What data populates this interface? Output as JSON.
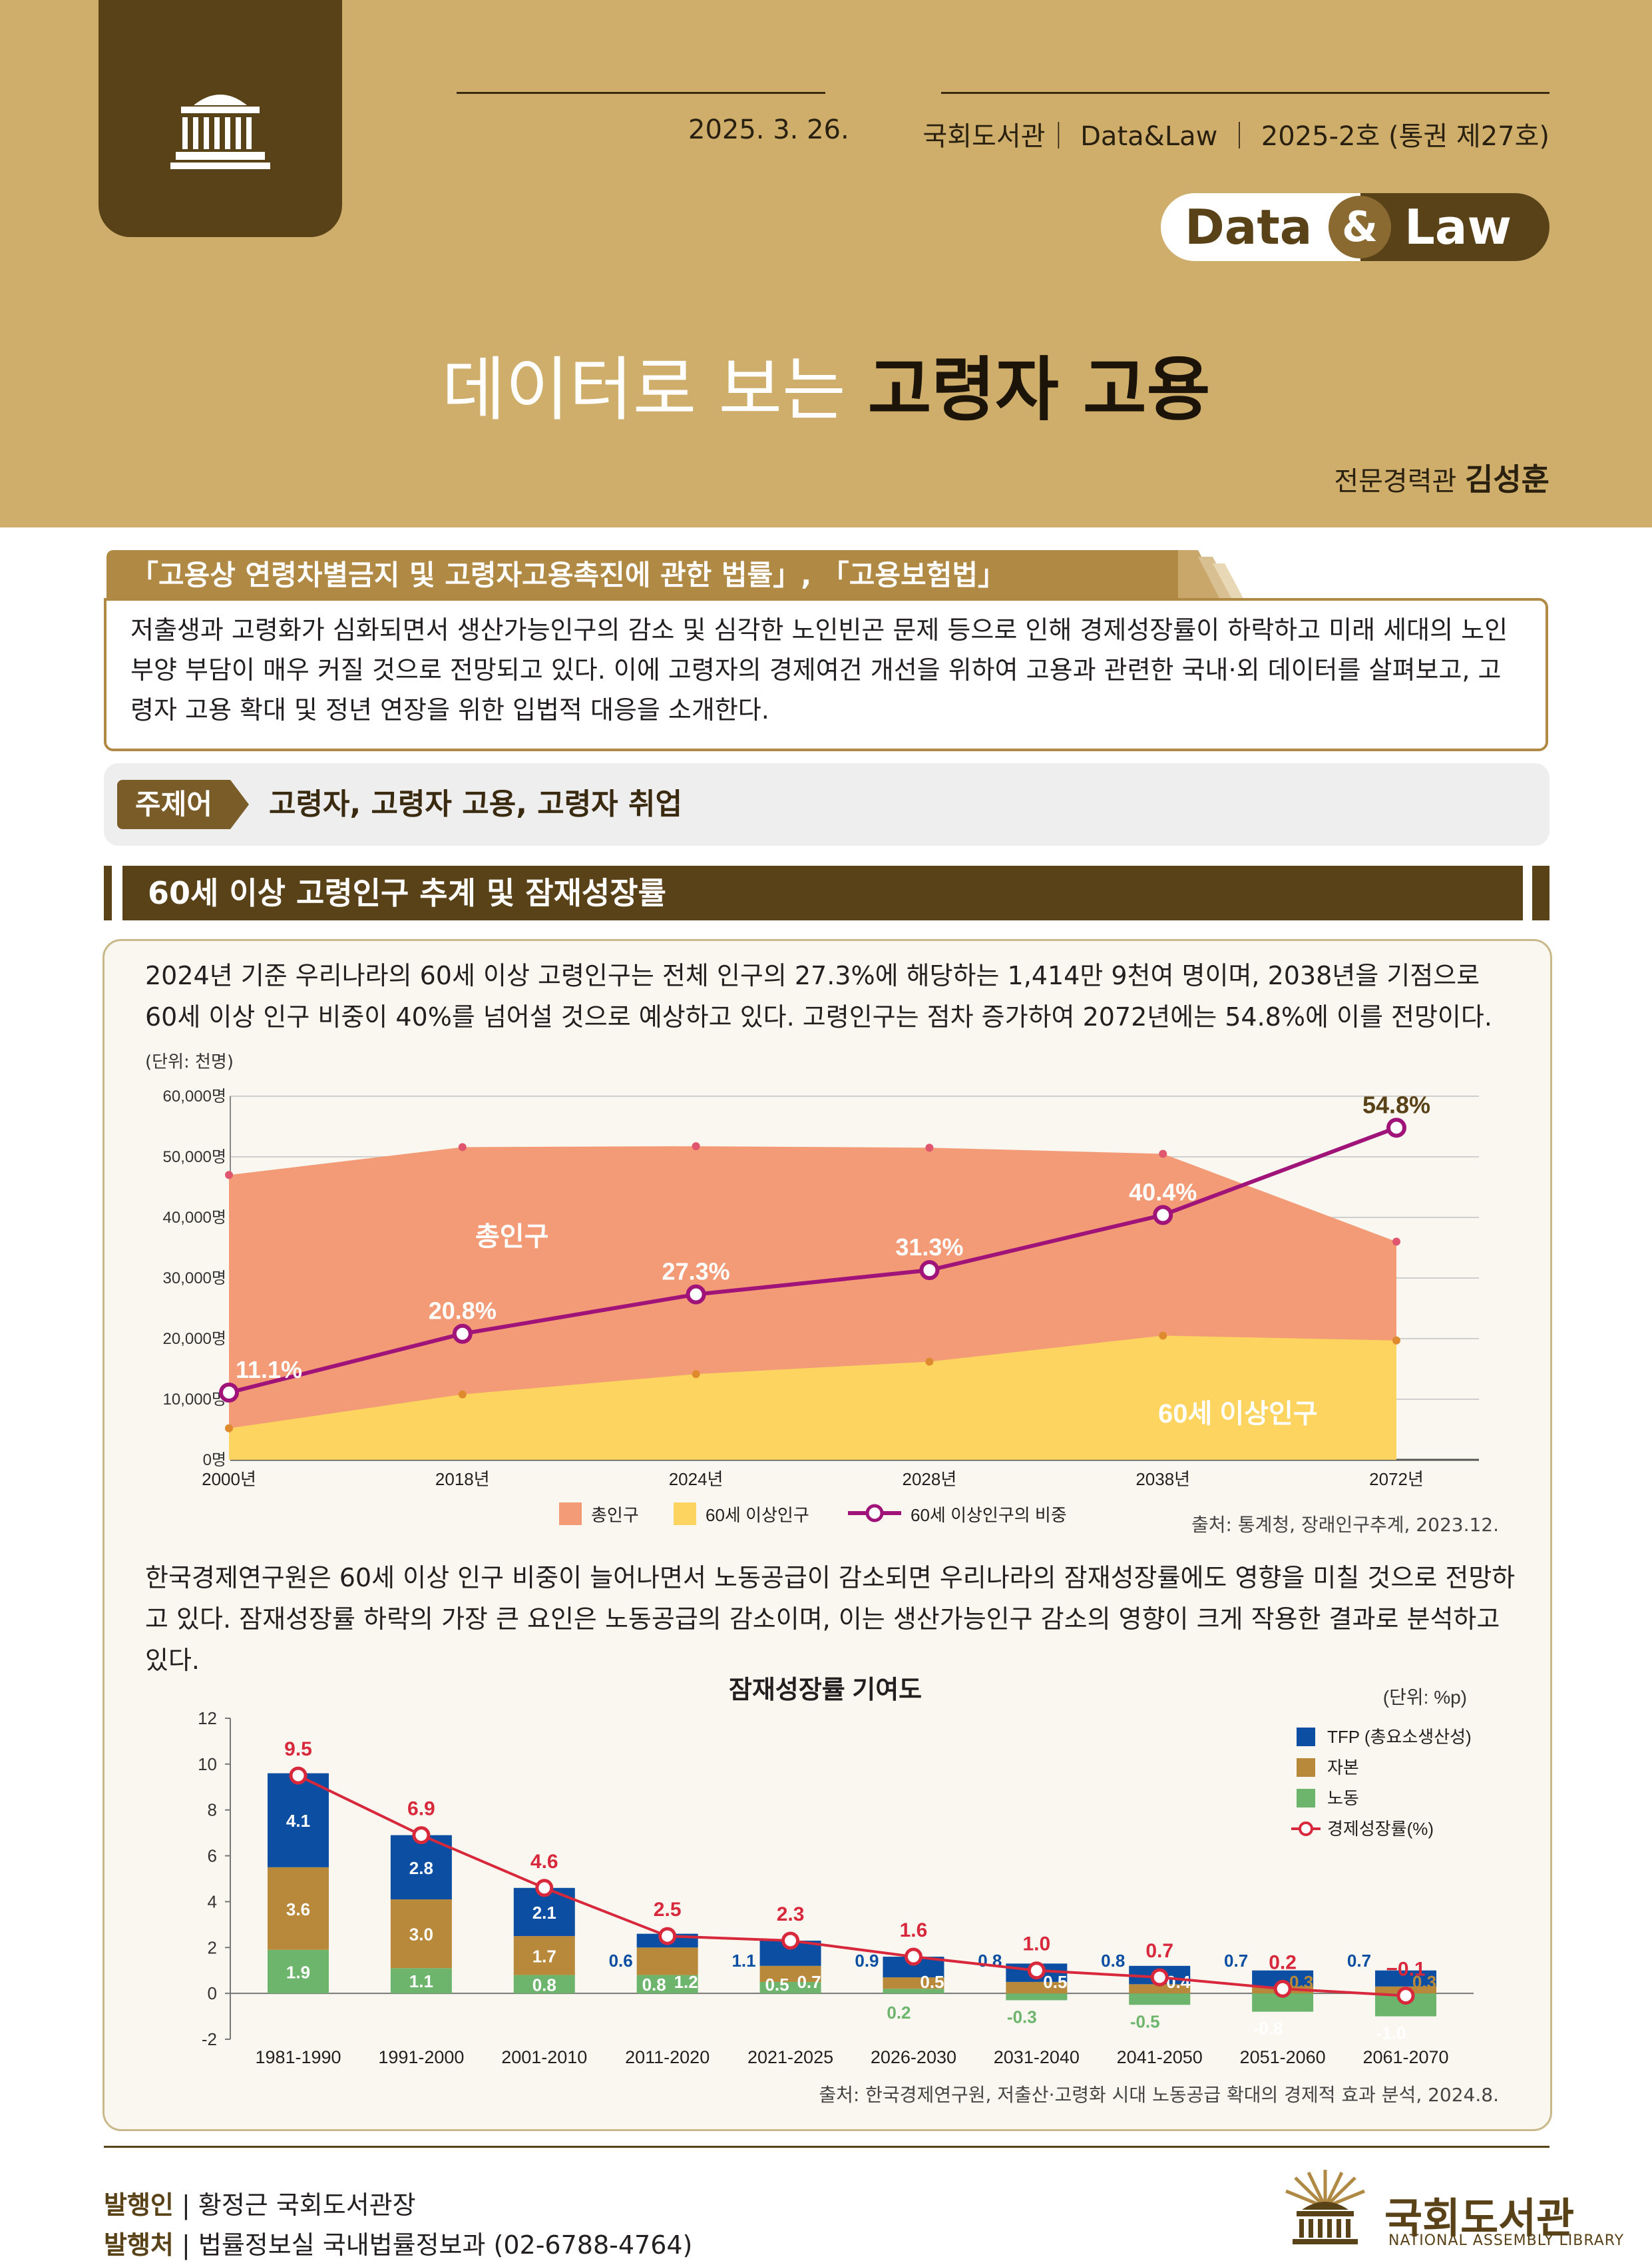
{
  "header": {
    "date": "2025. 3. 26.",
    "publication": "국회도서관｜ Data&Law ｜ 2025-2호 (통권 제27호)",
    "brand_data": "Data",
    "brand_amp": "&",
    "brand_law": "Law",
    "title_light": "데이터로 보는",
    "title_bold": "고령자 고용",
    "author_role": "전문경력관",
    "author_name": "김성훈"
  },
  "law": {
    "title": "「고용상 연령차별금지 및 고령자고용촉진에 관한 법률」, 「고용보험법」",
    "summary": "저출생과 고령화가 심화되면서 생산가능인구의 감소 및 심각한 노인빈곤 문제 등으로 인해 경제성장률이 하락하고 미래 세대의 노인부양 부담이 매우 커질 것으로 전망되고 있다. 이에 고령자의 경제여건 개선을 위하여 고용과 관련한 국내·외 데이터를 살펴보고, 고령자 고용 확대 및 정년 연장을 위한 입법적 대응을 소개한다."
  },
  "keywords": {
    "label": "주제어",
    "text": "고령자, 고령자 고용, 고령자 취업"
  },
  "section1": {
    "title": "60세 이상 고령인구 추계 및 잠재성장률",
    "para1": "2024년 기준 우리나라의 60세 이상 고령인구는 전체 인구의 27.3%에 해당하는 1,414만 9천여 명이며, 2038년을 기점으로 60세 이상 인구 비중이 40%를 넘어설 것으로 예상하고 있다. 고령인구는 점차 증가하여 2072년에는 54.8%에 이를 전망이다.",
    "para2": "한국경제연구원은 60세 이상 인구 비중이 늘어나면서 노동공급이 감소되면 우리나라의 잠재성장률에도 영향을 미칠 것으로 전망하고 있다. 잠재성장률 하락의 가장 큰 요인은 노동공급의 감소이며, 이는 생산가능인구 감소의 영향이 크게 작용한 결과로 분석하고 있다."
  },
  "chart_data": [
    {
      "type": "area",
      "unit_label": "(단위: 천명)",
      "categories": [
        "2000년",
        "2018년",
        "2024년",
        "2028년",
        "2038년",
        "2072년"
      ],
      "y_ticks": [
        "0명",
        "10,000명",
        "20,000명",
        "30,000명",
        "40,000명",
        "50,000명",
        "60,000명"
      ],
      "ylim": [
        0,
        60000
      ],
      "ylim_pct": [
        0,
        60
      ],
      "series": [
        {
          "name": "총인구",
          "values": [
            47000,
            51600,
            51750,
            51500,
            50500,
            36000
          ],
          "color": "#f29b76"
        },
        {
          "name": "60세 이상인구",
          "values": [
            5200,
            10800,
            14150,
            16200,
            20500,
            19700
          ],
          "color": "#fdd460"
        },
        {
          "name": "60세 이상인구의 비중",
          "values": [
            11.1,
            20.8,
            27.3,
            31.3,
            40.4,
            54.8
          ],
          "labels": [
            "11.1%",
            "20.8%",
            "27.3%",
            "31.3%",
            "40.4%",
            "54.8%"
          ],
          "color": "#a0147a"
        }
      ],
      "inline_labels": {
        "total": "총인구",
        "elderly": "60세 이상인구"
      },
      "legend": [
        "총인구",
        "60세 이상인구",
        "60세 이상인구의 비중"
      ],
      "legend_placement": "bottom",
      "source": "출처: 통계청, 장래인구추계, 2023.12."
    },
    {
      "type": "bar",
      "title": "잠재성장률 기여도",
      "unit_label": "(단위: %p)",
      "categories": [
        "1981-1990",
        "1991-2000",
        "2001-2010",
        "2011-2020",
        "2021-2025",
        "2026-2030",
        "2031-2040",
        "2041-2050",
        "2051-2060",
        "2061-2070"
      ],
      "y_ticks": [
        "-2",
        "0",
        "2",
        "4",
        "6",
        "8",
        "10",
        "12"
      ],
      "ylim": [
        -2,
        12
      ],
      "series": [
        {
          "name": "TFP (총요소생산성)",
          "values": [
            4.1,
            2.8,
            2.1,
            0.6,
            1.1,
            0.9,
            0.8,
            0.8,
            0.7,
            0.7
          ],
          "labels": [
            "4.1",
            "2.8",
            "2.1",
            "0.6",
            "1.1",
            "0.9",
            "0.8",
            "0.8",
            "0.7",
            "0.7"
          ],
          "color": "#0b4ea2"
        },
        {
          "name": "자본",
          "values": [
            3.6,
            3.0,
            1.7,
            1.2,
            0.7,
            0.5,
            0.5,
            0.4,
            0.3,
            0.3
          ],
          "labels": [
            "3.6",
            "3.0",
            "1.7",
            "1.2",
            "0.7",
            "0.5",
            "0.5",
            "0.4",
            "0.3",
            "0.3"
          ],
          "color": "#b8893a"
        },
        {
          "name": "노동",
          "values": [
            1.9,
            1.1,
            0.8,
            0.8,
            0.5,
            0.2,
            -0.3,
            -0.5,
            -0.8,
            -1.0
          ],
          "labels": [
            "1.9",
            "1.1",
            "0.8",
            "0.8",
            "0.5",
            "0.2",
            "-0.3",
            "-0.5",
            "-0.8",
            "-1.0"
          ],
          "color": "#6db56d"
        },
        {
          "name": "경제성장률(%)",
          "values": [
            9.5,
            6.9,
            4.6,
            2.5,
            2.3,
            1.6,
            1.0,
            0.7,
            0.2,
            -0.1
          ],
          "labels": [
            "9.5",
            "6.9",
            "4.6",
            "2.5",
            "2.3",
            "1.6",
            "1.0",
            "0.7",
            "0.2",
            "−0.1"
          ],
          "color": "#d7283c"
        }
      ],
      "legend_placement": "top-right",
      "source": "출처: 한국경제연구원, 저출산·고령화 시대 노동공급 확대의 경제적 효과 분석, 2024.8."
    }
  ],
  "footer": {
    "publisher_label": "발행인",
    "publisher": "황정근 국회도서관장",
    "issuer_label": "발행처",
    "issuer": "법률정보실 국내법률정보과 (02-6788-4764)",
    "library_name": "국회도서관",
    "library_en": "NATIONAL ASSEMBLY LIBRARY"
  }
}
